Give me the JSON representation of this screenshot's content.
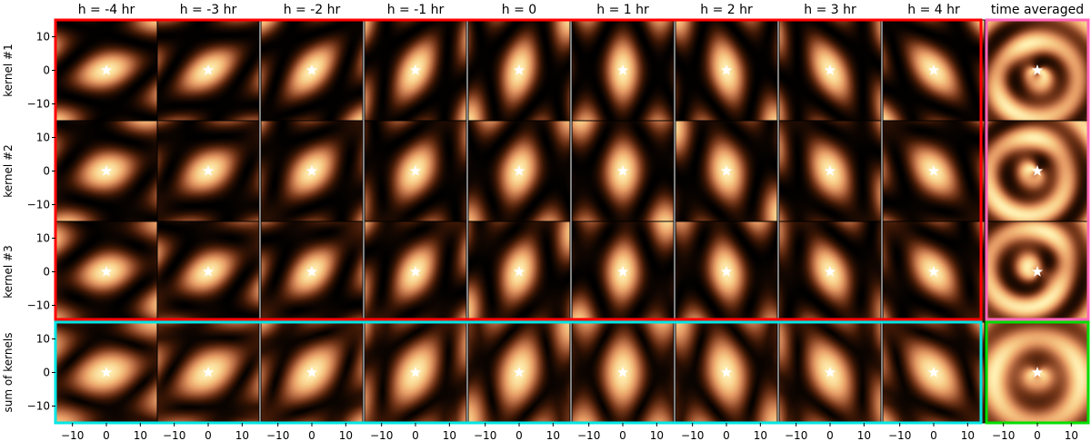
{
  "chart_data": {
    "type": "heatmap",
    "columns": [
      "h = -4 hr",
      "h = -3 hr",
      "h = -2 hr",
      "h = -1 hr",
      "h = 0",
      "h = 1 hr",
      "h = 2 hr",
      "h = 3 hr",
      "h = 4 hr",
      "time averaged"
    ],
    "rows": [
      "kernel #1",
      "kernel #2",
      "kernel #3",
      "sum of kernels"
    ],
    "hour_angles_hr": [
      -4,
      -3,
      -2,
      -1,
      0,
      1,
      2,
      3,
      4
    ],
    "xlim": [
      -15,
      15
    ],
    "ylim": [
      -15,
      15
    ],
    "xticks": [
      -10,
      0,
      10
    ],
    "yticks": [
      10,
      0,
      -10
    ],
    "tick_labels": {
      "neg10": "−10",
      "zero": "0",
      "pos10": "10"
    },
    "marker": {
      "symbol": "star",
      "x": 0,
      "y": 0,
      "color": "#ffffff"
    },
    "colormap": [
      "#000000",
      "#3a1605",
      "#7a3a1c",
      "#b56a42",
      "#e59a64",
      "#f7c884",
      "#fff0b2"
    ],
    "highlight_colors": {
      "kernels_snapshots": "#ff0000",
      "kernels_time_averaged": "#ff66bb",
      "sum_snapshots": "#00e5e5",
      "sum_time_averaged": "#00dd00"
    }
  }
}
